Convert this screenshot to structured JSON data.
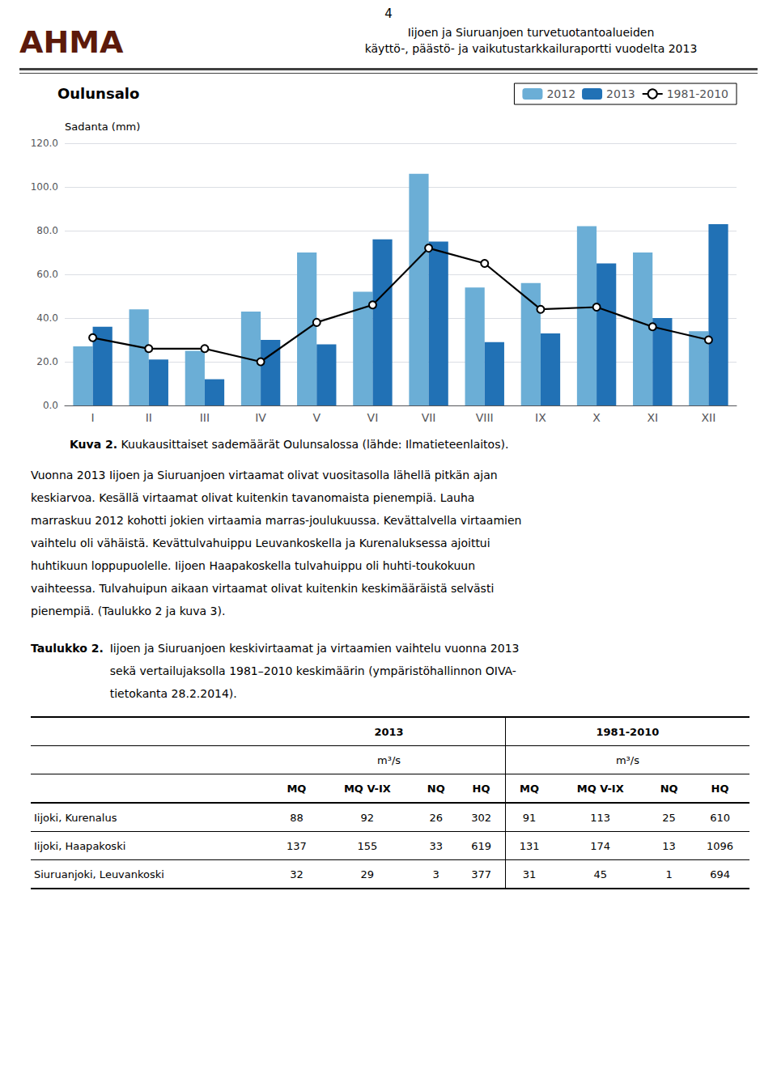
{
  "chart_data": {
    "type": "bar",
    "title": "Oulunsalo",
    "y_label": "Sadanta (mm)",
    "categories": [
      "I",
      "II",
      "III",
      "IV",
      "V",
      "VI",
      "VII",
      "VIII",
      "IX",
      "X",
      "XI",
      "XII"
    ],
    "series": [
      {
        "name": "2012",
        "type": "bar",
        "color": "#6baed6",
        "values": [
          27.0,
          44.0,
          25.0,
          43.0,
          70.0,
          52.0,
          106.0,
          54.0,
          56.0,
          82.0,
          70.0,
          34.0
        ]
      },
      {
        "name": "2013",
        "type": "bar",
        "color": "#2171b5",
        "values": [
          36.0,
          21.0,
          12.0,
          30.0,
          28.0,
          76.0,
          75.0,
          29.0,
          33.0,
          65.0,
          40.0,
          83.0
        ]
      },
      {
        "name": "1981-2010",
        "type": "line",
        "color": "#000000",
        "marker": "circle",
        "values": [
          31.0,
          26.0,
          26.0,
          20.0,
          38.0,
          46.0,
          72.0,
          65.0,
          44.0,
          45.0,
          36.0,
          30.0
        ]
      }
    ],
    "ylim": [
      0,
      120
    ],
    "yticks": [
      {
        "value": 0,
        "label": "0.0"
      },
      {
        "value": 20,
        "label": "20.0"
      },
      {
        "value": 40,
        "label": "40.0"
      },
      {
        "value": 60,
        "label": "60.0"
      },
      {
        "value": 80,
        "label": "80.0"
      },
      {
        "value": 100,
        "label": "100.0"
      },
      {
        "value": 120,
        "label": "120.0"
      }
    ],
    "grid": true,
    "legend": "upper right"
  },
  "page_texts": {
    "page_number": "4",
    "logo": "AHMA",
    "header": [
      "Iijoen ja Siuruanjoen turvetuotantoalueiden",
      "käyttö-, päästö- ja vaikutustarkkailuraportti vuodelta 2013"
    ],
    "caption_bold": "Kuva 2.",
    "caption": "Kuukausittaiset sademäärät Oulunsalossa (lähde: Ilmatieteenlaitos).",
    "body": [
      "Vuonna 2013 Iijoen ja Siuruanjoen virtaamat olivat vuositasolla lähellä pitkän ajan",
      "keskiarvoa. Kesällä virtaamat olivat kuitenkin tavanomaista pienempiä. Lauha",
      "marraskuu 2012 kohotti jokien virtaamia marras-joulukuussa. Kevättalvella virtaamien",
      "vaihtelu oli vähäistä. Kevättulvahuippu Leuvankoskella ja Kurenaluksessa ajoittui",
      "huhtikuun loppupuolelle. Iijoen Haapakoskella tulvahuippu oli huhti-toukokuun",
      "vaihteessa. Tulvahuipun aikaan virtaamat olivat kuitenkin keskimääräistä selvästi",
      "pienempiä. (Taulukko 2 ja kuva 3)."
    ],
    "table_title_bold": "Taulukko 2.",
    "table_title": [
      "Iijoen ja Siuruanjoen keskivirtaamat ja virtaamien vaihtelu vuonna 2013",
      "sekä vertailujaksolla 1981–2010 keskimäärin (ympäristöhallinnon OIVA-",
      "tietokanta 28.2.2014)."
    ]
  },
  "table": {
    "groups": [
      "2013",
      "1981-2010"
    ],
    "units": "m³/s",
    "columns": [
      "MQ",
      "MQ V-IX",
      "NQ",
      "HQ"
    ],
    "rows": [
      [
        "Iijoki, Kurenalus",
        "88",
        "92",
        "26",
        "302",
        "91",
        "113",
        "25",
        "610"
      ],
      [
        "Iijoki, Haapakoski",
        "137",
        "155",
        "33",
        "619",
        "131",
        "174",
        "13",
        "1096"
      ],
      [
        "Siuruanjoki, Leuvankoski",
        "32",
        "29",
        "3",
        "377",
        "31",
        "45",
        "1",
        "694"
      ]
    ]
  }
}
